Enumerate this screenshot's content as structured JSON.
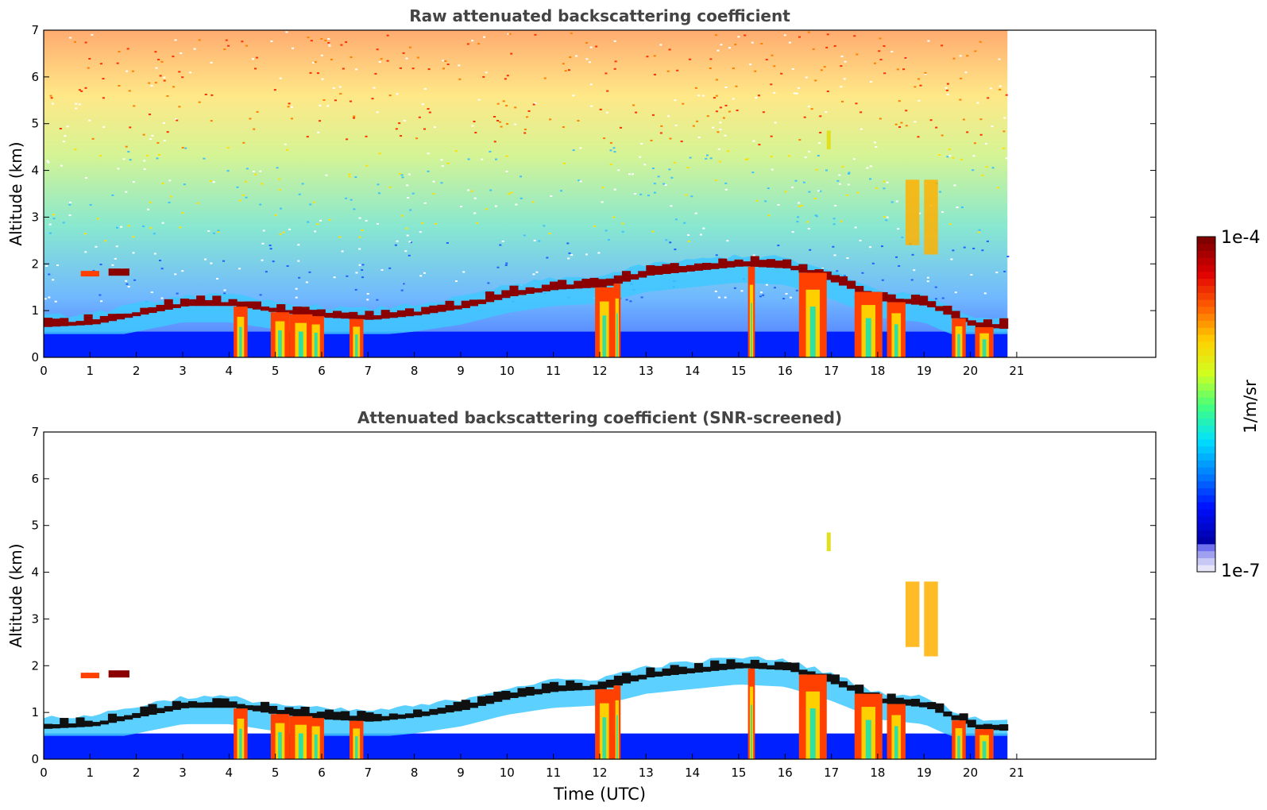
{
  "colors": {
    "axis": "#000000",
    "title": "#444444",
    "background": "#ffffff",
    "cloud_top": "#8b0000",
    "cloud_mid": "#ff4000",
    "cloud_core": "#ffd000",
    "boundary_layer": "#0020ff",
    "jet_colormap": [
      "#0000aa",
      "#0010ff",
      "#0080ff",
      "#00e0ff",
      "#40ff80",
      "#d0ff20",
      "#ffd000",
      "#ff6000",
      "#e00000",
      "#800000"
    ],
    "low_bins": [
      "#e6e6f8",
      "#c8c8f5",
      "#a0a0f0",
      "#7070ee"
    ]
  },
  "chart_data": [
    {
      "type": "heatmap",
      "title": "Raw attenuated backscattering coefficient",
      "xlabel": "",
      "ylabel": "Altitude (km)",
      "xlim": [
        0,
        24
      ],
      "ylim": [
        0,
        7
      ],
      "xticks": [
        "0",
        "1",
        "2",
        "3",
        "4",
        "5",
        "6",
        "7",
        "8",
        "9",
        "10",
        "11",
        "12",
        "13",
        "14",
        "15",
        "16",
        "17",
        "18",
        "19",
        "20",
        "21"
      ],
      "yticks": [
        "0",
        "1",
        "2",
        "3",
        "4",
        "5",
        "6",
        "7"
      ],
      "data_extent_time": [
        0,
        20.8
      ],
      "noise_background": true,
      "cloud_layer_altitude_km": [
        [
          0,
          0.65
        ],
        [
          1,
          0.7
        ],
        [
          2,
          0.9
        ],
        [
          3,
          1.1
        ],
        [
          4,
          1.1
        ],
        [
          5,
          0.95
        ],
        [
          6,
          0.85
        ],
        [
          7,
          0.8
        ],
        [
          8,
          0.9
        ],
        [
          9,
          1.05
        ],
        [
          10,
          1.3
        ],
        [
          11,
          1.45
        ],
        [
          12,
          1.5
        ],
        [
          13,
          1.75
        ],
        [
          14,
          1.85
        ],
        [
          15,
          1.95
        ],
        [
          16,
          1.9
        ],
        [
          17,
          1.6
        ],
        [
          18,
          1.2
        ],
        [
          19,
          1.1
        ],
        [
          20,
          0.65
        ],
        [
          20.8,
          0.6
        ]
      ]
    },
    {
      "type": "heatmap",
      "title": "Attenuated backscattering coefficient (SNR-screened)",
      "xlabel": "Time (UTC)",
      "ylabel": "Altitude (km)",
      "xlim": [
        0,
        24
      ],
      "ylim": [
        0,
        7
      ],
      "xticks": [
        "0",
        "1",
        "2",
        "3",
        "4",
        "5",
        "6",
        "7",
        "8",
        "9",
        "10",
        "11",
        "12",
        "13",
        "14",
        "15",
        "16",
        "17",
        "18",
        "19",
        "20",
        "21"
      ],
      "yticks": [
        "0",
        "1",
        "2",
        "3",
        "4",
        "5",
        "6",
        "7"
      ],
      "data_extent_time": [
        0,
        20.8
      ],
      "noise_background": false,
      "cloud_layer_altitude_km": [
        [
          0,
          0.65
        ],
        [
          1,
          0.7
        ],
        [
          2,
          0.9
        ],
        [
          3,
          1.1
        ],
        [
          4,
          1.1
        ],
        [
          5,
          0.95
        ],
        [
          6,
          0.85
        ],
        [
          7,
          0.8
        ],
        [
          8,
          0.9
        ],
        [
          9,
          1.05
        ],
        [
          10,
          1.3
        ],
        [
          11,
          1.45
        ],
        [
          12,
          1.5
        ],
        [
          13,
          1.75
        ],
        [
          14,
          1.85
        ],
        [
          15,
          1.95
        ],
        [
          16,
          1.9
        ],
        [
          17,
          1.6
        ],
        [
          18,
          1.2
        ],
        [
          19,
          1.1
        ],
        [
          20,
          0.65
        ],
        [
          20.8,
          0.6
        ]
      ]
    }
  ],
  "colorbar": {
    "label": "1/m/sr",
    "max_label": "1e-4",
    "min_label": "1e-7",
    "scale": "log"
  }
}
